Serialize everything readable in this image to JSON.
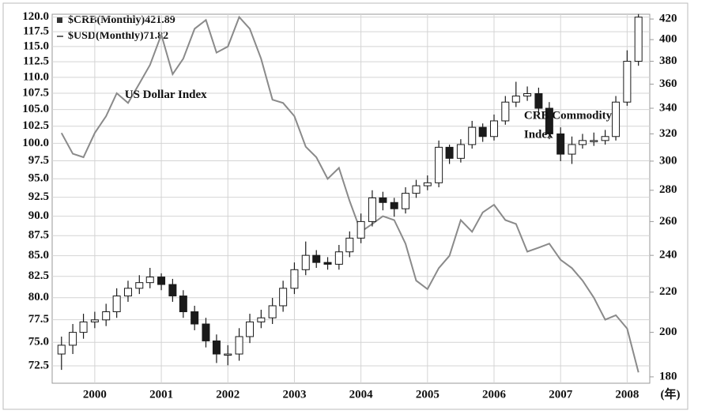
{
  "chart_data": {
    "type": "candlestick-line",
    "legend": [
      "$CRB(Monthly)421.89",
      "$USD(Monthly)71.82"
    ],
    "annotations": [
      {
        "text": "US Dollar Index",
        "x": 2000.45,
        "y": 107.2
      },
      {
        "lines": [
          "CRB Commodity",
          "Index"
        ],
        "x": 2006.45,
        "y": 104
      }
    ],
    "x_unit": "(年)",
    "x": [
      1999.5,
      1999.67,
      1999.83,
      2000,
      2000.17,
      2000.33,
      2000.5,
      2000.67,
      2000.83,
      2001,
      2001.17,
      2001.33,
      2001.5,
      2001.67,
      2001.83,
      2002,
      2002.17,
      2002.33,
      2002.5,
      2002.67,
      2002.83,
      2003,
      2003.17,
      2003.33,
      2003.5,
      2003.67,
      2003.83,
      2004,
      2004.17,
      2004.33,
      2004.5,
      2004.67,
      2004.83,
      2005,
      2005.17,
      2005.33,
      2005.5,
      2005.67,
      2005.83,
      2006,
      2006.17,
      2006.33,
      2006.5,
      2006.67,
      2006.83,
      2007,
      2007.17,
      2007.33,
      2007.5,
      2007.67,
      2007.83,
      2008,
      2008.17
    ],
    "candles": {
      "name": "$CRB(Monthly)",
      "axis": "y2",
      "up_color": "#ffffff",
      "down_color": "#1a1a1a",
      "edge_color": "#1a1a1a",
      "open": [
        190,
        194,
        200,
        205,
        206,
        210,
        218,
        222,
        225,
        228,
        224,
        218,
        210,
        204,
        196,
        190,
        190,
        198,
        205,
        207,
        213,
        222,
        232,
        240,
        236,
        235,
        242,
        250,
        260,
        275,
        272,
        268,
        278,
        283,
        285,
        310,
        302,
        312,
        325,
        318,
        330,
        345,
        350,
        352,
        340,
        320,
        305,
        312,
        315,
        315,
        318,
        345,
        380
      ],
      "high": [
        198,
        204,
        209,
        210,
        214,
        222,
        226,
        229,
        233,
        230,
        227,
        221,
        213,
        207,
        199,
        194,
        202,
        209,
        211,
        217,
        226,
        236,
        248,
        243,
        239,
        246,
        254,
        265,
        280,
        279,
        275,
        282,
        287,
        290,
        315,
        312,
        316,
        330,
        328,
        335,
        350,
        362,
        358,
        357,
        345,
        325,
        318,
        320,
        321,
        323,
        350,
        390,
        425
      ],
      "low": [
        183,
        190,
        197,
        202,
        203,
        207,
        215,
        219,
        222,
        221,
        215,
        207,
        201,
        193,
        186,
        185,
        187,
        195,
        202,
        204,
        210,
        219,
        229,
        233,
        232,
        232,
        239,
        247,
        257,
        267,
        263,
        265,
        275,
        280,
        282,
        298,
        299,
        309,
        314,
        315,
        327,
        341,
        346,
        336,
        316,
        300,
        298,
        309,
        311,
        312,
        315,
        342,
        376
      ],
      "close": [
        194,
        200,
        205,
        206,
        210,
        218,
        222,
        225,
        228,
        224,
        218,
        210,
        204,
        196,
        190,
        190,
        198,
        205,
        207,
        213,
        222,
        232,
        240,
        236,
        235,
        242,
        250,
        260,
        275,
        272,
        268,
        278,
        283,
        285,
        310,
        302,
        312,
        325,
        318,
        330,
        345,
        350,
        352,
        340,
        320,
        305,
        312,
        315,
        315,
        318,
        345,
        380,
        421.89
      ]
    },
    "series": [
      {
        "name": "$USD(Monthly)",
        "color": "#8a8a8a",
        "values": [
          101.5,
          98.5,
          98,
          101.5,
          104,
          107.5,
          106,
          109,
          112,
          117,
          110.5,
          113,
          118,
          119.5,
          114,
          115,
          120,
          118,
          113,
          106.5,
          106,
          104,
          99.5,
          98,
          95,
          96.5,
          92,
          88,
          89,
          90,
          89.5,
          86.5,
          82,
          81,
          83.5,
          85,
          89.5,
          88,
          90.5,
          91.5,
          89.5,
          89,
          85.5,
          86,
          86.5,
          84.5,
          83.5,
          82,
          80,
          77.5,
          78,
          76.5,
          71.82
        ]
      }
    ],
    "xlim": [
      1999.36,
      2008.34
    ],
    "xticks": [
      2000,
      2001,
      2002,
      2003,
      2004,
      2005,
      2006,
      2007,
      2008
    ],
    "ylim": [
      70.7,
      120.5
    ],
    "ylog": true,
    "yticks": [
      72.5,
      {
        "value": 75,
        "label": "75.0"
      },
      77.5,
      {
        "value": 80,
        "label": "80.0"
      },
      82.5,
      {
        "value": 85,
        "label": "85.0"
      },
      87.5,
      {
        "value": 90,
        "label": "90.0"
      },
      92.5,
      {
        "value": 95,
        "label": "95.0"
      },
      97.5,
      {
        "value": 100,
        "label": "100.0"
      },
      102.5,
      {
        "value": 105,
        "label": "105.0"
      },
      107.5,
      {
        "value": 110,
        "label": "110.0"
      },
      112.5,
      {
        "value": 115,
        "label": "115.0"
      },
      117.5,
      {
        "value": 120,
        "label": "120.0"
      }
    ],
    "y2lim": [
      177.3,
      424.8
    ],
    "y2log": true,
    "y2ticks": [
      180,
      200,
      220,
      240,
      260,
      280,
      300,
      320,
      340,
      360,
      380,
      400,
      420
    ],
    "grid": true
  }
}
